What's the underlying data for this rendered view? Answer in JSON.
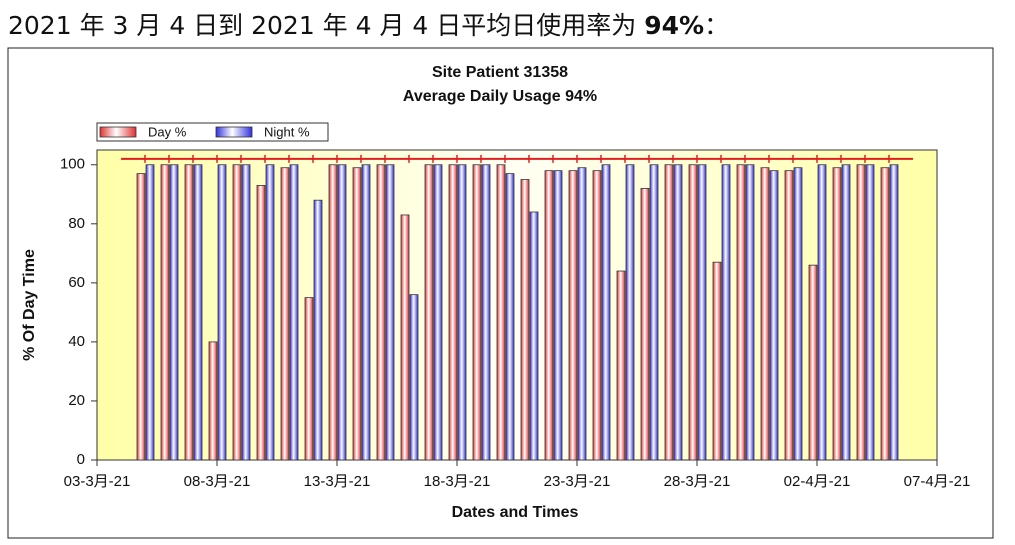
{
  "heading": [
    "2021 年 3 月 4 日到 2021 年 4 月 4 日平均日使用率为 ",
    "94%",
    "："
  ],
  "chart_data": {
    "type": "bar",
    "title": "Site Patient 31358",
    "subtitle": "Average Daily Usage 94%",
    "xlabel": "Dates and Times",
    "ylabel": "% Of Day Time",
    "x": [
      "05-3月-21",
      "06-3月-21",
      "07-3月-21",
      "08-3月-21",
      "09-3月-21",
      "10-3月-21",
      "11-3月-21",
      "12-3月-21",
      "13-3月-21",
      "14-3月-21",
      "15-3月-21",
      "16-3月-21",
      "17-3月-21",
      "18-3月-21",
      "19-3月-21",
      "20-3月-21",
      "21-3月-21",
      "22-3月-21",
      "23-3月-21",
      "24-3月-21",
      "25-3月-21",
      "26-3月-21",
      "27-3月-21",
      "28-3月-21",
      "29-3月-21",
      "30-3月-21",
      "31-3月-21",
      "01-4月-21",
      "02-4月-21",
      "03-4月-21",
      "04-4月-21",
      "05-4月-21"
    ],
    "series": [
      {
        "name": "Day %",
        "color": "#e03030",
        "values": [
          97,
          100,
          100,
          40,
          100,
          93,
          99,
          55,
          100,
          99,
          100,
          83,
          100,
          100,
          100,
          100,
          95,
          98,
          98,
          98,
          64,
          92,
          100,
          100,
          67,
          100,
          99,
          98,
          66,
          99,
          100,
          99
        ]
      },
      {
        "name": "Night %",
        "color": "#3030e0",
        "values": [
          100,
          100,
          100,
          100,
          100,
          100,
          100,
          88,
          100,
          100,
          100,
          56,
          100,
          100,
          100,
          97,
          84,
          98,
          99,
          100,
          100,
          100,
          100,
          100,
          100,
          100,
          98,
          99,
          100,
          100,
          100,
          100
        ]
      }
    ],
    "xlim": [
      "03-3月-21",
      "07-4月-21"
    ],
    "xticks": [
      "03-3月-21",
      "08-3月-21",
      "13-3月-21",
      "18-3月-21",
      "23-3月-21",
      "28-3月-21",
      "02-4月-21",
      "07-4月-21"
    ],
    "ylim": [
      0,
      105
    ],
    "yticks": [
      0,
      20,
      40,
      60,
      80,
      100
    ],
    "hline": {
      "value": 102,
      "color": "#e02020"
    },
    "legend": "top-left"
  }
}
